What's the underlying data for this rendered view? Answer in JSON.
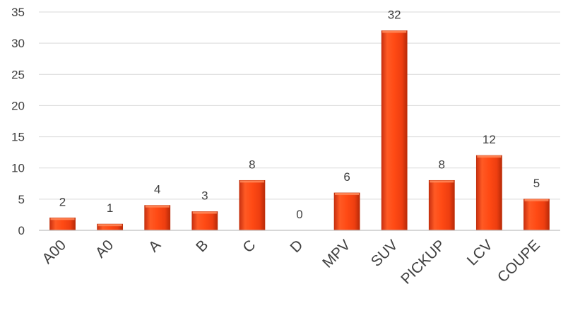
{
  "chart_data": {
    "type": "bar",
    "title": "",
    "xlabel": "",
    "ylabel": "",
    "categories": [
      "A00",
      "A0",
      "A",
      "B",
      "C",
      "D",
      "MPV",
      "SUV",
      "PICKUP",
      "LCV",
      "COUPE"
    ],
    "values": [
      2,
      1,
      4,
      3,
      8,
      0,
      6,
      32,
      8,
      12,
      5
    ],
    "ylim": [
      0,
      35
    ],
    "yticks": [
      0,
      5,
      10,
      15,
      20,
      25,
      30,
      35
    ],
    "grid": true,
    "legend": "none",
    "bar_color": "#ff4a14",
    "bar_edge_color": "#c0300a"
  }
}
